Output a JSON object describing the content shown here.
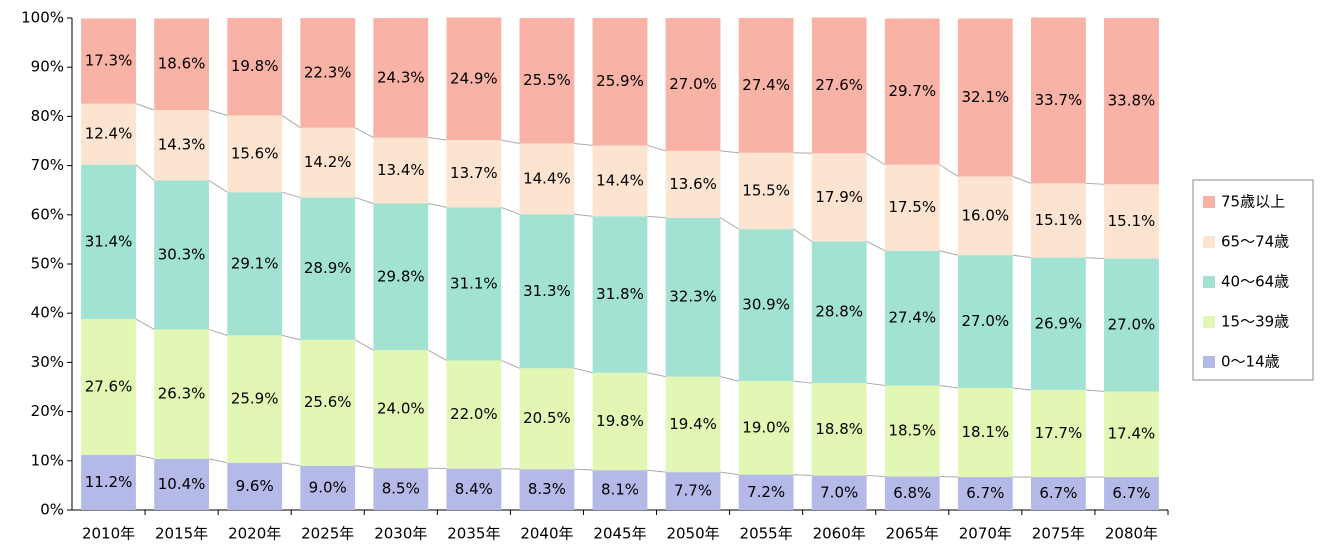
{
  "chart_data": {
    "type": "stacked_bar",
    "categories": [
      "2010年",
      "2015年",
      "2020年",
      "2025年",
      "2030年",
      "2035年",
      "2040年",
      "2045年",
      "2050年",
      "2055年",
      "2060年",
      "2065年",
      "2070年",
      "2075年",
      "2080年"
    ],
    "series": [
      {
        "name": "0〜14歳",
        "color": "#b4b9e8",
        "values": [
          11.2,
          10.4,
          9.6,
          9.0,
          8.5,
          8.4,
          8.3,
          8.1,
          7.7,
          7.2,
          7.0,
          6.8,
          6.7,
          6.7,
          6.7
        ],
        "value_labels": [
          "11.2%",
          "10.4%",
          "9.6%",
          "9.0%",
          "8.5%",
          "8.4%",
          "8.3%",
          "8.1%",
          "7.7%",
          "7.2%",
          "7.0%",
          "6.8%",
          "6.7%",
          "6.7%",
          "6.7%"
        ]
      },
      {
        "name": "15〜39歳",
        "color": "#e2f7b4",
        "values": [
          27.6,
          26.3,
          25.9,
          25.6,
          24.0,
          22.0,
          20.5,
          19.8,
          19.4,
          19.0,
          18.8,
          18.5,
          18.1,
          17.7,
          17.4
        ],
        "value_labels": [
          "27.6%",
          "26.3%",
          "25.9%",
          "25.6%",
          "24.0%",
          "22.0%",
          "20.5%",
          "19.8%",
          "19.4%",
          "19.0%",
          "18.8%",
          "18.5%",
          "18.1%",
          "17.7%",
          "17.4%"
        ]
      },
      {
        "name": "40〜64歳",
        "color": "#a2e2d2",
        "values": [
          31.4,
          30.3,
          29.1,
          28.9,
          29.8,
          31.1,
          31.3,
          31.8,
          32.3,
          30.9,
          28.8,
          27.4,
          27.0,
          26.9,
          27.0
        ],
        "value_labels": [
          "31.4%",
          "30.3%",
          "29.1%",
          "28.9%",
          "29.8%",
          "31.1%",
          "31.3%",
          "31.8%",
          "32.3%",
          "30.9%",
          "28.8%",
          "27.4%",
          "27.0%",
          "26.9%",
          "27.0%"
        ]
      },
      {
        "name": "65〜74歳",
        "color": "#fde4d0",
        "values": [
          12.4,
          14.3,
          15.6,
          14.2,
          13.4,
          13.7,
          14.4,
          14.4,
          13.6,
          15.5,
          17.9,
          17.5,
          16.0,
          15.1,
          15.1
        ],
        "value_labels": [
          "12.4%",
          "14.3%",
          "15.6%",
          "14.2%",
          "13.4%",
          "13.7%",
          "14.4%",
          "14.4%",
          "13.6%",
          "15.5%",
          "17.9%",
          "17.5%",
          "16.0%",
          "15.1%",
          "15.1%"
        ]
      },
      {
        "name": "75歳以上",
        "color": "#f8b2a6",
        "values": [
          17.3,
          18.6,
          19.8,
          22.3,
          24.3,
          24.9,
          25.5,
          25.9,
          27.0,
          27.4,
          27.6,
          29.7,
          32.1,
          33.7,
          33.8
        ],
        "value_labels": [
          "17.3%",
          "18.6%",
          "19.8%",
          "22.3%",
          "24.3%",
          "24.9%",
          "25.5%",
          "25.9%",
          "27.0%",
          "27.4%",
          "27.6%",
          "29.7%",
          "32.1%",
          "33.7%",
          "33.8%"
        ]
      }
    ],
    "ylim": [
      0,
      100
    ],
    "yticks": [
      {
        "value": 0,
        "label": "0%"
      },
      {
        "value": 10,
        "label": "10%"
      },
      {
        "value": 20,
        "label": "20%"
      },
      {
        "value": 30,
        "label": "30%"
      },
      {
        "value": 40,
        "label": "40%"
      },
      {
        "value": 50,
        "label": "50%"
      },
      {
        "value": 60,
        "label": "60%"
      },
      {
        "value": 70,
        "label": "70%"
      },
      {
        "value": 80,
        "label": "80%"
      },
      {
        "value": 90,
        "label": "90%"
      },
      {
        "value": 100,
        "label": "100%"
      }
    ],
    "legend": "right"
  }
}
